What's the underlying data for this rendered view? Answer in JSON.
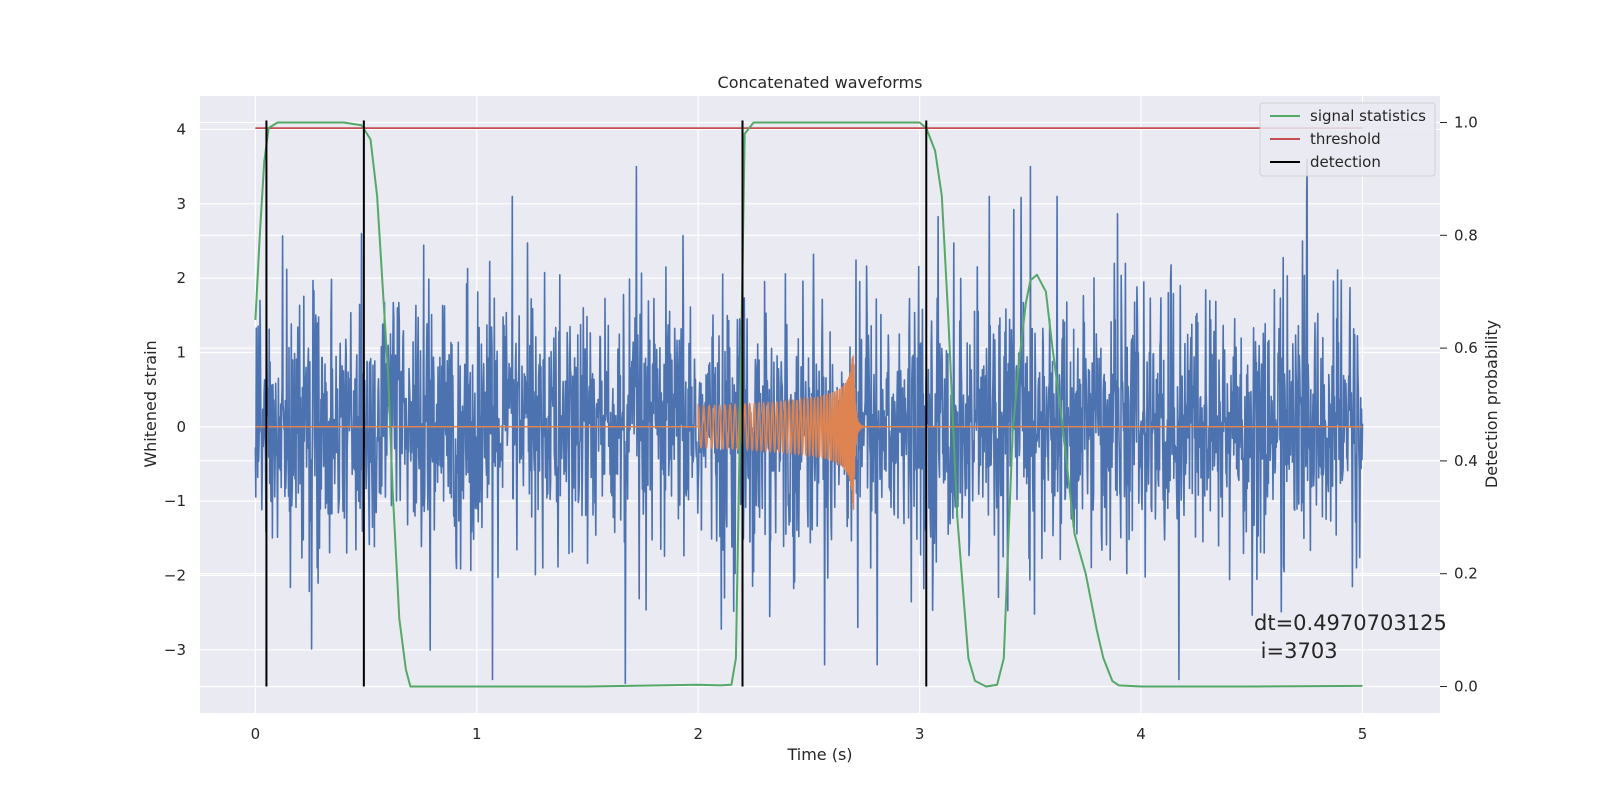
{
  "chart_data": {
    "type": "line",
    "title": "Concatenated waveforms",
    "xlabel": "Time (s)",
    "ylabel": "Whitened strain",
    "y2label": "Detection probability",
    "xlim": [
      -0.25,
      5.35
    ],
    "ylim": [
      -3.85,
      4.45
    ],
    "y2lim": [
      -0.047,
      1.047
    ],
    "xticks": [
      0,
      1,
      2,
      3,
      4,
      5
    ],
    "yticks": [
      -3,
      -2,
      -1,
      0,
      1,
      2,
      3,
      4
    ],
    "y2ticks": [
      0.0,
      0.2,
      0.4,
      0.6,
      0.8,
      1.0
    ],
    "xtick_labels": [
      "0",
      "1",
      "2",
      "3",
      "4",
      "5"
    ],
    "ytick_labels": [
      "−3",
      "−2",
      "−1",
      "0",
      "1",
      "2",
      "3",
      "4"
    ],
    "y2tick_labels": [
      "0.0",
      "0.2",
      "0.4",
      "0.6",
      "0.8",
      "1.0"
    ],
    "grid": true,
    "legend_position": "top-right",
    "colors": {
      "background": "#eaeaf2",
      "grid": "#ffffff",
      "noise": "#4c72b0",
      "waveform": "#dd8452",
      "signal_statistics": "#55a868",
      "threshold": "#c44e52",
      "detection": "#000000"
    },
    "series": [
      {
        "name": "",
        "role": "whitened-noise",
        "axis": "left",
        "x_range": [
          0,
          5
        ],
        "envelope_typical": 1.2,
        "peaks": [
          {
            "x": 0.02,
            "y": 1.7
          },
          {
            "x": 0.48,
            "y": 2.6
          },
          {
            "x": 1.72,
            "y": 3.5
          },
          {
            "x": 2.72,
            "y": -2.7
          },
          {
            "x": 3.5,
            "y": 3.5
          },
          {
            "x": 4.75,
            "y": 3.6
          },
          {
            "x": 1.07,
            "y": -3.4
          },
          {
            "x": 1.67,
            "y": -3.45
          },
          {
            "x": 4.17,
            "y": -3.4
          }
        ]
      },
      {
        "name": "",
        "role": "injected-waveform",
        "axis": "left",
        "x_range": [
          2.0,
          2.72
        ],
        "start_amplitude": 0.28,
        "peak_amplitude": 1.3,
        "merger_time": 2.7
      },
      {
        "name": "signal statistics",
        "axis": "right",
        "x": [
          0.0,
          0.02,
          0.04,
          0.06,
          0.1,
          0.2,
          0.3,
          0.4,
          0.48,
          0.52,
          0.55,
          0.6,
          0.62,
          0.65,
          0.68,
          0.7,
          1.0,
          1.5,
          2.0,
          2.1,
          2.15,
          2.17,
          2.19,
          2.21,
          2.25,
          2.3,
          3.0,
          3.03,
          3.07,
          3.1,
          3.13,
          3.17,
          3.2,
          3.22,
          3.25,
          3.3,
          3.35,
          3.38,
          3.4,
          3.42,
          3.45,
          3.48,
          3.5,
          3.53,
          3.57,
          3.6,
          3.64,
          3.7,
          3.75,
          3.8,
          3.83,
          3.87,
          3.9,
          4.0,
          4.5,
          5.0
        ],
        "values": [
          0.65,
          0.8,
          0.93,
          0.99,
          1.0,
          1.0,
          1.0,
          1.0,
          0.995,
          0.97,
          0.87,
          0.55,
          0.35,
          0.12,
          0.03,
          0.0,
          0.0,
          0.0,
          0.003,
          0.002,
          0.003,
          0.05,
          0.5,
          0.98,
          1.0,
          1.0,
          1.0,
          0.99,
          0.95,
          0.87,
          0.65,
          0.3,
          0.15,
          0.05,
          0.01,
          0.0,
          0.003,
          0.05,
          0.25,
          0.45,
          0.58,
          0.68,
          0.72,
          0.73,
          0.7,
          0.6,
          0.48,
          0.27,
          0.2,
          0.1,
          0.05,
          0.01,
          0.002,
          0.0,
          0.0,
          0.001
        ]
      },
      {
        "name": "threshold",
        "axis": "right",
        "x": [
          0,
          5
        ],
        "values": [
          0.99,
          0.99
        ]
      },
      {
        "name": "detection",
        "axis": "right",
        "x": [
          0.05,
          0.49,
          2.2,
          3.03
        ],
        "range": [
          0,
          1
        ]
      }
    ],
    "annotation": {
      "line1": "dt=0.4970703125",
      "line2": " i=3703"
    }
  }
}
